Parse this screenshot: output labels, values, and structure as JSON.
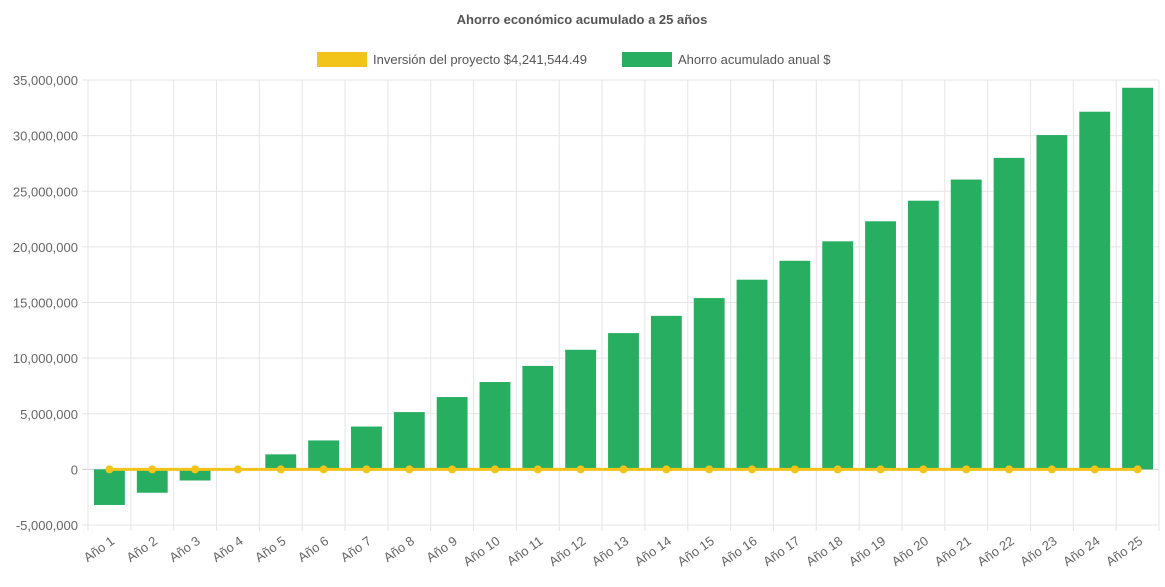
{
  "chart_data": {
    "type": "bar",
    "title": "Ahorro económico acumulado a 25 años",
    "xlabel": "",
    "ylabel": "",
    "ylim": [
      -5000000,
      35000000
    ],
    "yticks": [
      35000000,
      30000000,
      25000000,
      20000000,
      15000000,
      10000000,
      5000000,
      0,
      -5000000
    ],
    "ytick_labels": [
      "35,000,000",
      "30,000,000",
      "25,000,000",
      "20,000,000",
      "15,000,000",
      "10,000,000",
      "5,000,000",
      "0",
      "-5,000,000"
    ],
    "categories": [
      "Año 1",
      "Año 2",
      "Año 3",
      "Año 4",
      "Año 5",
      "Año 6",
      "Año 7",
      "Año 8",
      "Año 9",
      "Año 10",
      "Año 11",
      "Año 12",
      "Año 13",
      "Año 14",
      "Año 15",
      "Año 16",
      "Año 17",
      "Año 18",
      "Año 19",
      "Año 20",
      "Año 21",
      "Año 22",
      "Año 23",
      "Año 24",
      "Año 25"
    ],
    "grid": true,
    "legend_position": "top-center",
    "series": [
      {
        "name": "Inversión del proyecto $4,241,544.49",
        "type": "line",
        "color": "#f2c318",
        "values": [
          0,
          0,
          0,
          0,
          0,
          0,
          0,
          0,
          0,
          0,
          0,
          0,
          0,
          0,
          0,
          0,
          0,
          0,
          0,
          0,
          0,
          0,
          0,
          0,
          0
        ]
      },
      {
        "name": "Ahorro acumulado anual $",
        "type": "bar",
        "color": "#27ae60",
        "values": [
          -3200000,
          -2100000,
          -1000000,
          100000,
          1350000,
          2600000,
          3850000,
          5150000,
          6500000,
          7850000,
          9300000,
          10750000,
          12250000,
          13800000,
          15400000,
          17050000,
          18750000,
          20500000,
          22300000,
          24150000,
          26050000,
          28000000,
          30050000,
          32150000,
          34300000
        ]
      }
    ]
  }
}
